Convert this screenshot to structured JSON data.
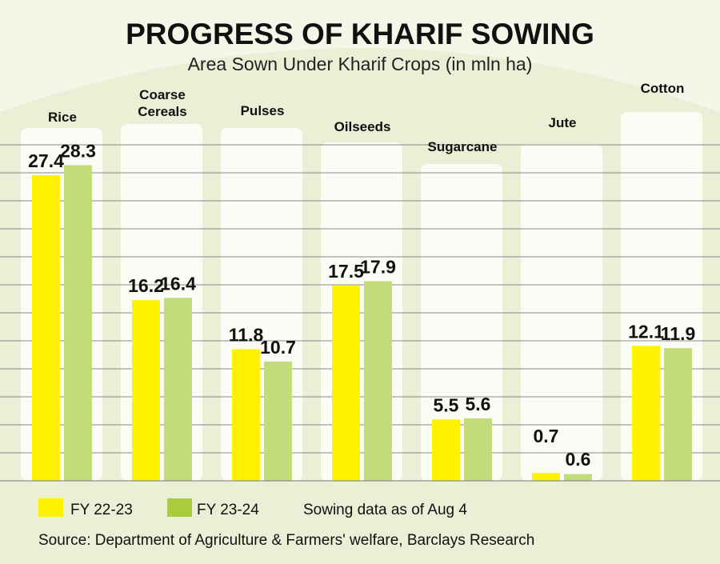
{
  "chart_data": {
    "type": "bar",
    "title": "PROGRESS OF KHARIF SOWING",
    "subtitle": "Area Sown Under Kharif Crops (in mln ha)",
    "categories": [
      "Rice",
      "Coarse Cereals",
      "Pulses",
      "Oilseeds",
      "Sugarcane",
      "Jute",
      "Cotton"
    ],
    "series": [
      {
        "name": "FY 22-23",
        "color": "#fff200",
        "values": [
          27.4,
          16.2,
          11.8,
          17.5,
          5.5,
          0.7,
          12.1
        ]
      },
      {
        "name": "FY 23-24",
        "color": "#c2dc7c",
        "values": [
          28.3,
          16.4,
          10.7,
          17.9,
          5.6,
          0.6,
          11.9
        ]
      }
    ],
    "ylim": [
      0,
      30
    ],
    "grid": true,
    "legend_position": "bottom-left",
    "legend_swatch_colors": [
      "#fff200",
      "#a8cc3c"
    ],
    "note": "Sowing data as of Aug 4",
    "source": "Source: Department of Agriculture & Farmers' welfare, Barclays Research"
  }
}
